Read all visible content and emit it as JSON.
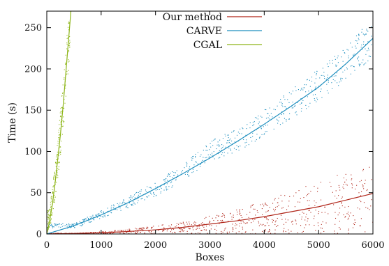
{
  "chart_data": {
    "type": "scatter",
    "xlabel": "Boxes",
    "ylabel": "Time (s)",
    "xlim": [
      0,
      6000
    ],
    "ylim": [
      0,
      270
    ],
    "x_ticks": [
      0,
      1000,
      2000,
      3000,
      4000,
      5000,
      6000
    ],
    "y_ticks": [
      0,
      50,
      100,
      150,
      200,
      250
    ],
    "grid": false,
    "legend_position": "top-right",
    "series": [
      {
        "name": "Our method",
        "color": "#b02418",
        "fit_line": [
          [
            0,
            0
          ],
          [
            500,
            0.5
          ],
          [
            1000,
            1.5
          ],
          [
            1500,
            3
          ],
          [
            2000,
            5
          ],
          [
            2500,
            8
          ],
          [
            3000,
            12
          ],
          [
            3500,
            16
          ],
          [
            4000,
            21
          ],
          [
            4500,
            27
          ],
          [
            5000,
            33
          ],
          [
            5500,
            41
          ],
          [
            6000,
            49
          ]
        ],
        "scatter_envelope": [
          {
            "x": 500,
            "low": 0,
            "high": 1
          },
          {
            "x": 1000,
            "low": 0,
            "high": 3
          },
          {
            "x": 1500,
            "low": 0,
            "high": 6
          },
          {
            "x": 2000,
            "low": 0,
            "high": 10
          },
          {
            "x": 2500,
            "low": 0,
            "high": 15
          },
          {
            "x": 3000,
            "low": 0,
            "high": 22
          },
          {
            "x": 3500,
            "low": 0,
            "high": 30
          },
          {
            "x": 4000,
            "low": 0,
            "high": 40
          },
          {
            "x": 4500,
            "low": 0,
            "high": 52
          },
          {
            "x": 5000,
            "low": 0,
            "high": 63
          },
          {
            "x": 5500,
            "low": 0,
            "high": 75
          },
          {
            "x": 6000,
            "low": 0,
            "high": 85
          }
        ]
      },
      {
        "name": "CARVE",
        "color": "#1f8fbf",
        "fit_line": [
          [
            0,
            0
          ],
          [
            500,
            10
          ],
          [
            1000,
            23
          ],
          [
            1500,
            38
          ],
          [
            2000,
            55
          ],
          [
            2500,
            73
          ],
          [
            3000,
            92
          ],
          [
            3500,
            112
          ],
          [
            4000,
            133
          ],
          [
            4500,
            155
          ],
          [
            5000,
            178
          ],
          [
            5500,
            206
          ],
          [
            6000,
            237
          ]
        ],
        "scatter_envelope": [
          {
            "x": 500,
            "low": 7,
            "high": 13
          },
          {
            "x": 1000,
            "low": 18,
            "high": 28
          },
          {
            "x": 1500,
            "low": 31,
            "high": 45
          },
          {
            "x": 2000,
            "low": 46,
            "high": 64
          },
          {
            "x": 2500,
            "low": 62,
            "high": 84
          },
          {
            "x": 3000,
            "low": 88,
            "high": 112
          },
          {
            "x": 3500,
            "low": 100,
            "high": 128
          },
          {
            "x": 4000,
            "low": 118,
            "high": 150
          },
          {
            "x": 4500,
            "low": 140,
            "high": 175
          },
          {
            "x": 5000,
            "low": 160,
            "high": 200
          },
          {
            "x": 5500,
            "low": 185,
            "high": 228
          },
          {
            "x": 6000,
            "low": 215,
            "high": 262
          }
        ]
      },
      {
        "name": "CGAL",
        "color": "#8db518",
        "fit_line": [
          [
            0,
            0
          ],
          [
            50,
            15
          ],
          [
            100,
            35
          ],
          [
            150,
            60
          ],
          [
            200,
            90
          ],
          [
            250,
            120
          ],
          [
            300,
            155
          ],
          [
            350,
            195
          ],
          [
            400,
            235
          ],
          [
            450,
            275
          ]
        ],
        "scatter_envelope": [
          {
            "x": 50,
            "low": 5,
            "high": 30
          },
          {
            "x": 100,
            "low": 20,
            "high": 55
          },
          {
            "x": 150,
            "low": 40,
            "high": 85
          },
          {
            "x": 200,
            "low": 65,
            "high": 115
          },
          {
            "x": 250,
            "low": 95,
            "high": 150
          },
          {
            "x": 300,
            "low": 125,
            "high": 185
          },
          {
            "x": 350,
            "low": 160,
            "high": 225
          },
          {
            "x": 400,
            "low": 200,
            "high": 262
          },
          {
            "x": 430,
            "low": 225,
            "high": 270
          }
        ]
      }
    ]
  }
}
